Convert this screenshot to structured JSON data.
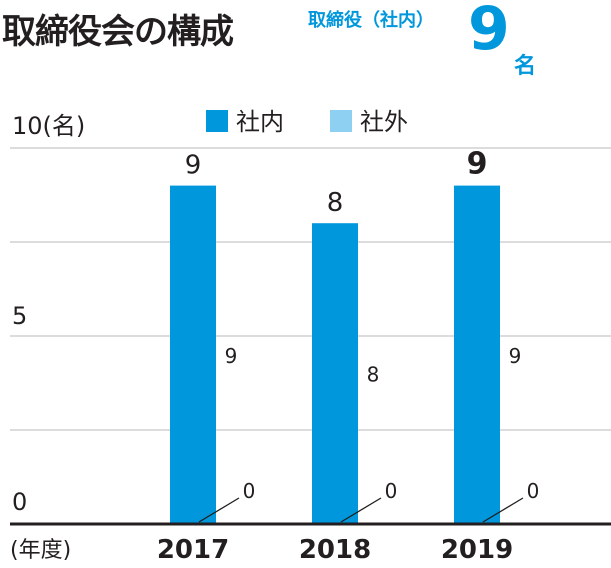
{
  "header": {
    "title": "取締役会の構成",
    "summary_label": "取締役（社内）",
    "summary_value": "9",
    "summary_unit": "名"
  },
  "chart_data": {
    "type": "bar",
    "stacked": true,
    "title": "取締役会の構成",
    "y_unit_label": "10(名)",
    "x_unit_label": "(年度)",
    "categories": [
      "2017",
      "2018",
      "2019"
    ],
    "series": [
      {
        "name": "社内",
        "color": "#0097dc",
        "values": [
          9,
          8,
          9
        ]
      },
      {
        "name": "社外",
        "color": "#8dd0f2",
        "values": [
          0,
          0,
          0
        ]
      }
    ],
    "totals": [
      9,
      8,
      9
    ],
    "y_ticks": [
      0,
      5
    ],
    "ylim": [
      0,
      10
    ],
    "grid": true,
    "legend_position": "top-center",
    "highlight_category": "2019"
  }
}
